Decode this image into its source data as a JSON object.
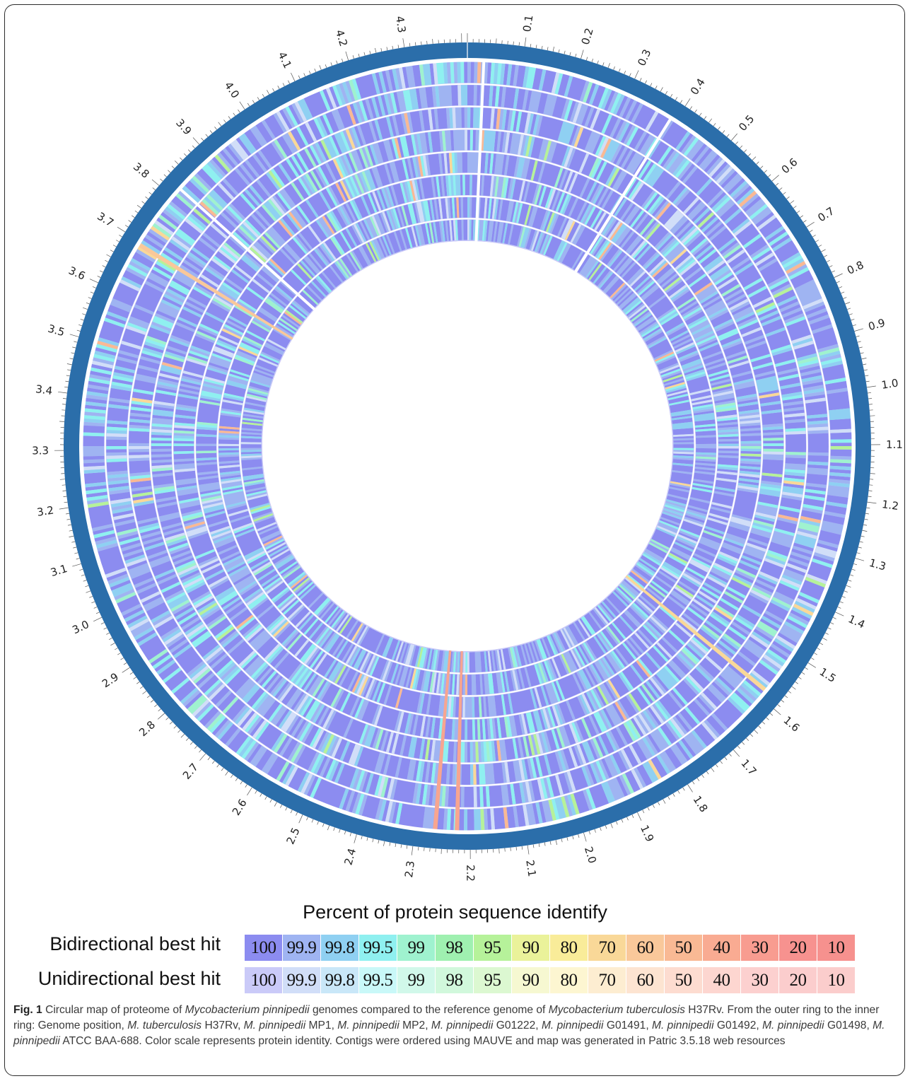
{
  "figure": {
    "ticks": [
      "0.1",
      "0.2",
      "0.3",
      "0.4",
      "0.5",
      "0.6",
      "0.7",
      "0.8",
      "0.9",
      "1.0",
      "1.1",
      "1.2",
      "1.3",
      "1.4",
      "1.5",
      "1.6",
      "1.7",
      "1.8",
      "1.9",
      "2.0",
      "2.1",
      "2.2",
      "2.3",
      "2.4",
      "2.5",
      "2.6",
      "2.7",
      "2.8",
      "2.9",
      "3.0",
      "3.1",
      "3.2",
      "3.3",
      "3.4",
      "3.5",
      "3.6",
      "3.7",
      "3.8",
      "3.9",
      "4.0",
      "4.1",
      "4.2",
      "4.3"
    ],
    "genome_total_mb": 4.41,
    "outer_ring_color": "#2b6eaa",
    "rings": [
      "M. tuberculosis H37Rv",
      "M. pinnipedii MP1",
      "M. pinnipedii MP2",
      "M. pinnipedii G01222",
      "M. pinnipedii G01491",
      "M. pinnipedii G01492",
      "M. pinnipedii G01498",
      "M. pinnipedii ATCC BAA-688"
    ]
  },
  "legend": {
    "title": "Percent of protein sequence identify",
    "bidirectional_label": "Bidirectional best hit",
    "unidirectional_label": "Unidirectional best hit",
    "values": [
      "100",
      "99.9",
      "99.8",
      "99.5",
      "99",
      "98",
      "95",
      "90",
      "80",
      "70",
      "60",
      "50",
      "40",
      "30",
      "20",
      "10"
    ],
    "bidirectional_colors": [
      "#8c8cf0",
      "#9fb4f2",
      "#8fd0f2",
      "#8ff0f0",
      "#9ff2cf",
      "#9ff0b0",
      "#b6f29a",
      "#eaf29a",
      "#f9ec99",
      "#f9d898",
      "#f9c89a",
      "#f9b994",
      "#f9ab92",
      "#f89c90",
      "#f7928f",
      "#f6918e"
    ],
    "unidirectional_colors": [
      "#cacaf8",
      "#d1def8",
      "#c9e7f8",
      "#c9f8f8",
      "#d1f8ea",
      "#d1f8dc",
      "#dcf8d1",
      "#f6f8d1",
      "#fdf6d1",
      "#fdedd1",
      "#fde4d1",
      "#fddcd0",
      "#fdd6d0",
      "#fcd0cf",
      "#fbcdcd",
      "#fbcdcc"
    ]
  },
  "caption": {
    "fig_label": "Fig. 1",
    "parts": [
      {
        "t": " Circular map of proteome of ",
        "i": false
      },
      {
        "t": "Mycobacterium pinnipedii",
        "i": true
      },
      {
        "t": " genomes compared to the reference genome of ",
        "i": false
      },
      {
        "t": "Mycobacterium tuberculosis",
        "i": true
      },
      {
        "t": " H37Rv. From the outer ring to the inner ring: Genome position, ",
        "i": false
      },
      {
        "t": "M. tuberculosis",
        "i": true
      },
      {
        "t": " H37Rv, ",
        "i": false
      },
      {
        "t": "M. pinnipedii",
        "i": true
      },
      {
        "t": " MP1, ",
        "i": false
      },
      {
        "t": "M. pinnipedii",
        "i": true
      },
      {
        "t": " MP2, ",
        "i": false
      },
      {
        "t": "M. pinnipedii",
        "i": true
      },
      {
        "t": " G01222, ",
        "i": false
      },
      {
        "t": "M. pinnipedii",
        "i": true
      },
      {
        "t": " G01491, ",
        "i": false
      },
      {
        "t": "M. pinnipedii",
        "i": true
      },
      {
        "t": " G01492, ",
        "i": false
      },
      {
        "t": "M. pinnipedii",
        "i": true
      },
      {
        "t": " G01498, ",
        "i": false
      },
      {
        "t": "M. pinnipedii",
        "i": true
      },
      {
        "t": " ATCC BAA-688. Color scale represents protein identity. Contigs were ordered using MAUVE and map was generated in Patric 3.5.18 web resources",
        "i": false
      }
    ]
  }
}
